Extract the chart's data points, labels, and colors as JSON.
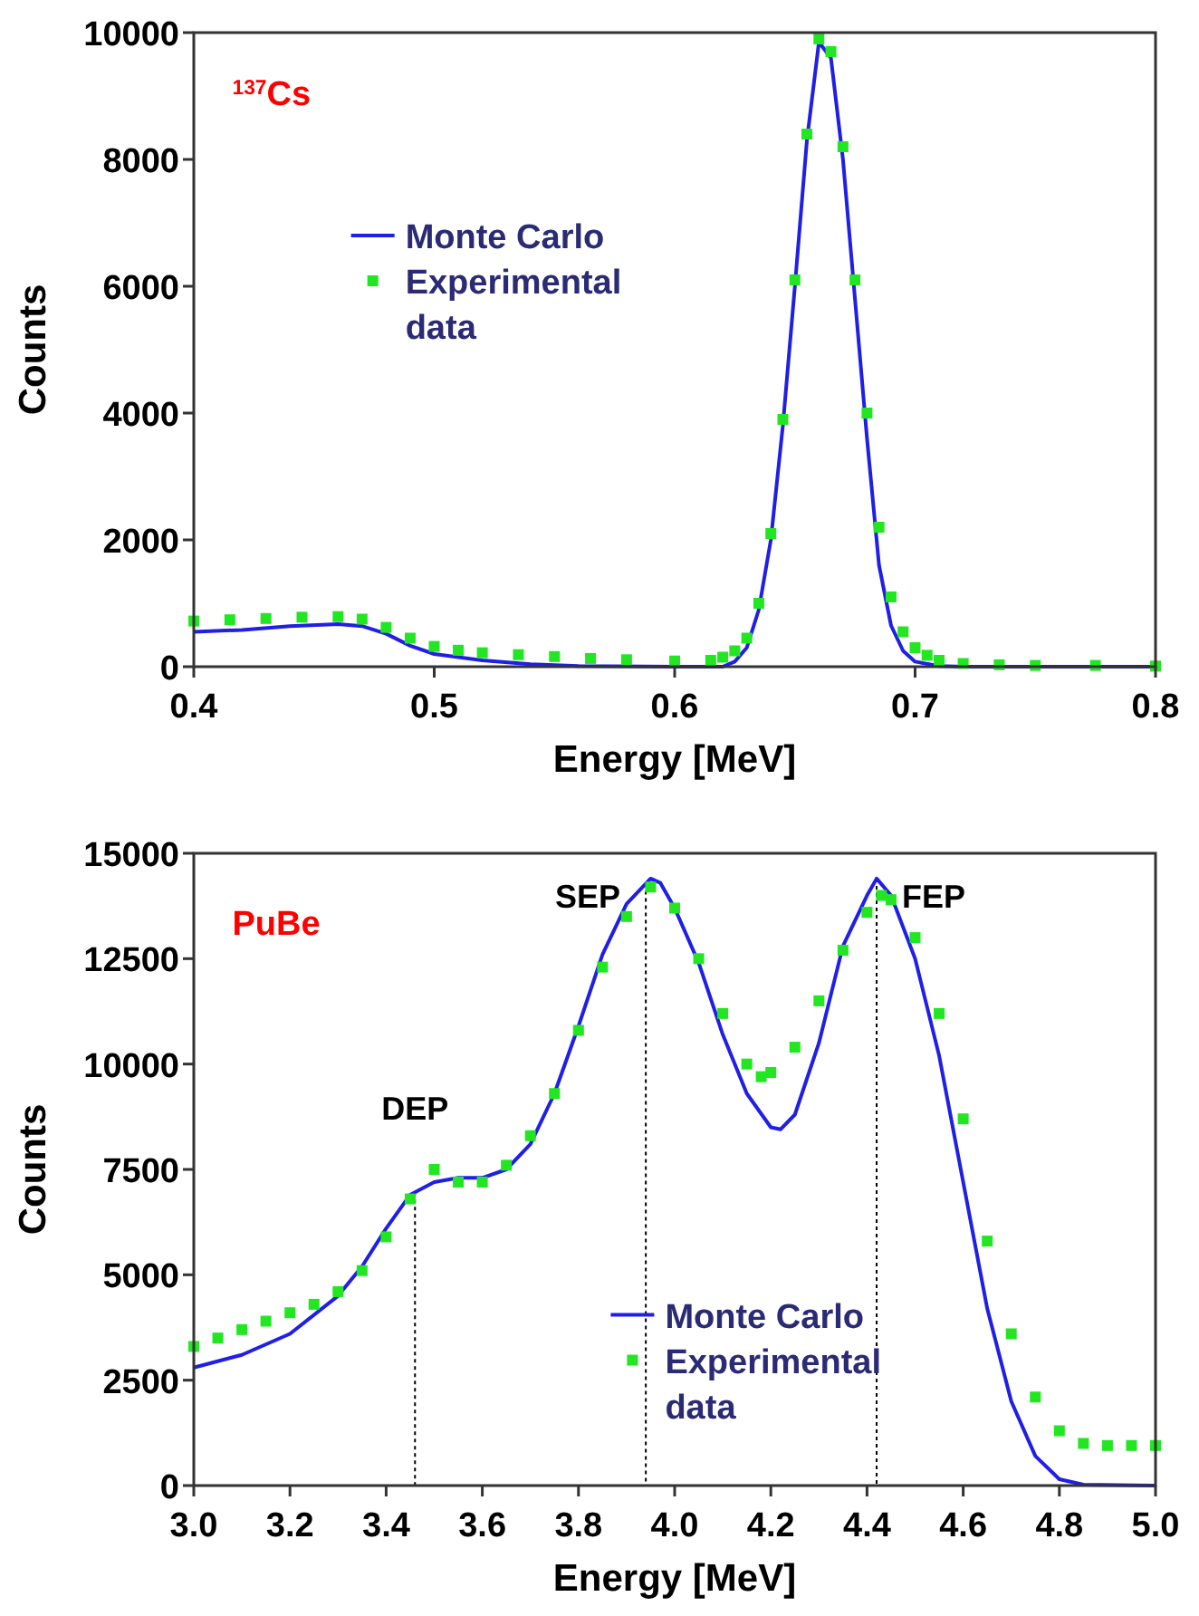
{
  "chart_data": [
    {
      "type": "line",
      "xlabel": "Energy [MeV]",
      "ylabel": "Counts",
      "xlim": [
        0.4,
        0.8
      ],
      "xticks": [
        0.4,
        0.5,
        0.6,
        0.7,
        0.8
      ],
      "ylim": [
        0,
        10000
      ],
      "yticks": [
        0,
        2000,
        4000,
        6000,
        8000,
        10000
      ],
      "legend": "left",
      "grid": false,
      "annotations": [
        "$^{137}$Cs"
      ],
      "series": [
        {
          "name": "Monte Carlo",
          "color": "#1f1fe6",
          "x": [
            0.4,
            0.42,
            0.44,
            0.46,
            0.47,
            0.48,
            0.49,
            0.5,
            0.52,
            0.54,
            0.56,
            0.6,
            0.62,
            0.625,
            0.63,
            0.635,
            0.64,
            0.645,
            0.65,
            0.655,
            0.66,
            0.665,
            0.67,
            0.675,
            0.68,
            0.685,
            0.69,
            0.695,
            0.7,
            0.71,
            0.72,
            0.8
          ],
          "values": [
            550,
            580,
            640,
            670,
            640,
            520,
            330,
            200,
            100,
            40,
            10,
            0,
            0,
            80,
            300,
            900,
            2000,
            3800,
            6000,
            8300,
            9850,
            9600,
            8000,
            5800,
            3600,
            1600,
            650,
            250,
            80,
            10,
            0,
            0
          ]
        },
        {
          "name": "Experimental data",
          "type": "scatter",
          "marker": "square",
          "color": "#22e622",
          "x": [
            0.4,
            0.415,
            0.43,
            0.445,
            0.46,
            0.47,
            0.48,
            0.49,
            0.5,
            0.51,
            0.52,
            0.535,
            0.55,
            0.565,
            0.58,
            0.6,
            0.615,
            0.62,
            0.625,
            0.63,
            0.635,
            0.64,
            0.645,
            0.65,
            0.655,
            0.66,
            0.665,
            0.67,
            0.675,
            0.68,
            0.685,
            0.69,
            0.695,
            0.7,
            0.705,
            0.71,
            0.72,
            0.735,
            0.75,
            0.775,
            0.8
          ],
          "values": [
            720,
            740,
            760,
            780,
            790,
            750,
            620,
            450,
            320,
            260,
            220,
            190,
            160,
            130,
            110,
            90,
            100,
            150,
            250,
            450,
            1000,
            2100,
            3900,
            6100,
            8400,
            9900,
            9700,
            8200,
            6100,
            4000,
            2200,
            1100,
            550,
            300,
            180,
            100,
            50,
            30,
            20,
            20,
            10
          ]
        }
      ]
    },
    {
      "type": "line",
      "xlabel": "Energy [MeV]",
      "ylabel": "Counts",
      "xlim": [
        3.0,
        5.0
      ],
      "xticks": [
        "3.0",
        3.2,
        3.4,
        3.6,
        3.8,
        "4.0",
        4.2,
        4.4,
        4.6,
        4.8,
        "5.0"
      ],
      "ylim": [
        0,
        15000
      ],
      "yticks": [
        0,
        2500,
        5000,
        7500,
        10000,
        12500,
        15000
      ],
      "legend": "bottom right",
      "grid": false,
      "annotations": [
        "PuBe"
      ],
      "ref_lines": [
        {
          "axis": "x",
          "value": 3.46,
          "label": "DEP",
          "color": "#000000",
          "line_style": "dotted"
        },
        {
          "axis": "x",
          "value": 3.94,
          "label": "SEP",
          "color": "#000000",
          "line_style": "dotted"
        },
        {
          "axis": "x",
          "value": 4.42,
          "label": "FEP",
          "color": "#000000",
          "line_style": "dotted"
        }
      ],
      "series": [
        {
          "name": "Monte Carlo",
          "color": "#1f1fe6",
          "x": [
            3.0,
            3.1,
            3.2,
            3.3,
            3.35,
            3.4,
            3.45,
            3.5,
            3.55,
            3.6,
            3.65,
            3.7,
            3.75,
            3.8,
            3.85,
            3.9,
            3.95,
            3.97,
            4.0,
            4.05,
            4.1,
            4.15,
            4.2,
            4.22,
            4.25,
            4.3,
            4.35,
            4.4,
            4.42,
            4.45,
            4.5,
            4.55,
            4.6,
            4.65,
            4.7,
            4.75,
            4.8,
            4.85,
            5.0
          ],
          "values": [
            2800,
            3100,
            3600,
            4500,
            5200,
            6100,
            6900,
            7200,
            7300,
            7300,
            7500,
            8100,
            9300,
            10900,
            12600,
            13800,
            14400,
            14300,
            13700,
            12400,
            10700,
            9300,
            8500,
            8450,
            8800,
            10500,
            12800,
            14000,
            14400,
            14000,
            12500,
            10200,
            7200,
            4200,
            2000,
            700,
            150,
            20,
            0
          ]
        },
        {
          "name": "Experimental data",
          "type": "scatter",
          "marker": "square",
          "color": "#22e622",
          "x": [
            3.0,
            3.05,
            3.1,
            3.15,
            3.2,
            3.25,
            3.3,
            3.35,
            3.4,
            3.45,
            3.5,
            3.55,
            3.6,
            3.65,
            3.7,
            3.75,
            3.8,
            3.85,
            3.9,
            3.95,
            4.0,
            4.05,
            4.1,
            4.15,
            4.18,
            4.2,
            4.25,
            4.3,
            4.35,
            4.4,
            4.43,
            4.45,
            4.5,
            4.55,
            4.6,
            4.65,
            4.7,
            4.75,
            4.8,
            4.85,
            4.9,
            4.95,
            5.0
          ],
          "values": [
            3300,
            3500,
            3700,
            3900,
            4100,
            4300,
            4600,
            5100,
            5900,
            6800,
            7500,
            7200,
            7200,
            7600,
            8300,
            9300,
            10800,
            12300,
            13500,
            14200,
            13700,
            12500,
            11200,
            10000,
            9700,
            9800,
            10400,
            11500,
            12700,
            13600,
            14000,
            13900,
            13000,
            11200,
            8700,
            5800,
            3600,
            2100,
            1300,
            1000,
            950,
            950,
            950
          ]
        }
      ]
    }
  ]
}
